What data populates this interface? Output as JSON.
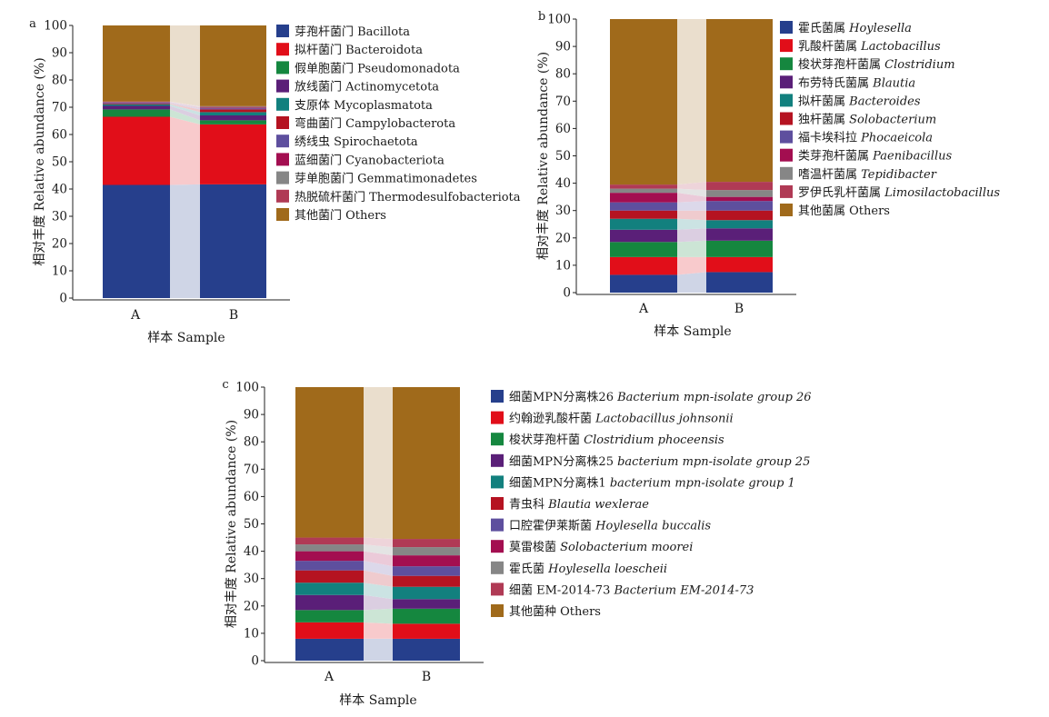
{
  "chart_data": [
    {
      "panel_label": "a",
      "type": "bar",
      "stacked": true,
      "categories": [
        "A",
        "B"
      ],
      "xlabel": "样本 Sample",
      "ylabel": "相对丰度 Relative abundance (%)",
      "ylim": [
        0,
        100
      ],
      "yticks": [
        0,
        10,
        20,
        30,
        40,
        50,
        60,
        70,
        80,
        90,
        100
      ],
      "legend_position": "right",
      "series": [
        {
          "name": "芽孢杆菌门 Bacillota",
          "values": [
            41.5,
            41.7
          ],
          "color": "#263F8C"
        },
        {
          "name": "拟杆菌门 Bacteroidota",
          "values": [
            25.0,
            22.0
          ],
          "color": "#E10E19"
        },
        {
          "name": "假单胞菌门 Pseudomonadota",
          "values": [
            2.7,
            1.5
          ],
          "color": "#15873F"
        },
        {
          "name": "放线菌门 Actinomycetota",
          "values": [
            1.3,
            1.8
          ],
          "color": "#5A1F78"
        },
        {
          "name": "支原体 Mycoplasmatota",
          "values": [
            0.6,
            1.2
          ],
          "color": "#12807E"
        },
        {
          "name": "弯曲菌门 Campylobacterota",
          "values": [
            0.3,
            1.0
          ],
          "color": "#B51321"
        },
        {
          "name": "绣线虫 Spirochaetota",
          "values": [
            0.3,
            0.4
          ],
          "color": "#5E4F9E"
        },
        {
          "name": "蓝细菌门 Cyanobacteriota",
          "values": [
            0.2,
            0.3
          ],
          "color": "#A30E50"
        },
        {
          "name": "芽单胞菌门 Gemmatimonadetes",
          "values": [
            0.1,
            0.3
          ],
          "color": "#868686"
        },
        {
          "name": "热脱硫杆菌门 Thermodesulfobacteriota",
          "values": [
            0.1,
            0.2
          ],
          "color": "#B03A55"
        },
        {
          "name": "其他菌门 Others",
          "values": [
            27.9,
            29.6
          ],
          "color": "#A06A1B"
        }
      ]
    },
    {
      "panel_label": "b",
      "type": "bar",
      "stacked": true,
      "categories": [
        "A",
        "B"
      ],
      "xlabel": "样本 Sample",
      "ylabel": "相对丰度 Relative abundance (%)",
      "ylim": [
        0,
        100
      ],
      "yticks": [
        0,
        10,
        20,
        30,
        40,
        50,
        60,
        70,
        80,
        90,
        100
      ],
      "legend_position": "right",
      "series": [
        {
          "name_cn": "霍氏菌属",
          "name_latin": "Hoylesella",
          "values": [
            6.5,
            7.5
          ],
          "color": "#263F8C"
        },
        {
          "name_cn": "乳酸杆菌属",
          "name_latin": "Lactobacillus",
          "values": [
            6.5,
            5.5
          ],
          "color": "#E10E19"
        },
        {
          "name_cn": "梭状芽孢杆菌属",
          "name_latin": "Clostridium",
          "values": [
            5.5,
            6.0
          ],
          "color": "#15873F"
        },
        {
          "name_cn": "布劳特氏菌属",
          "name_latin": "Blautia",
          "values": [
            4.5,
            4.5
          ],
          "color": "#5A1F78"
        },
        {
          "name_cn": "拟杆菌属",
          "name_latin": "Bacteroides",
          "values": [
            4.0,
            3.0
          ],
          "color": "#12807E"
        },
        {
          "name_cn": "独杆菌属",
          "name_latin": "Solobacterium",
          "values": [
            3.0,
            3.5
          ],
          "color": "#B51321"
        },
        {
          "name_cn": "福卡埃科拉",
          "name_latin": "Phocaeicola",
          "values": [
            3.0,
            3.5
          ],
          "color": "#5E4F9E"
        },
        {
          "name_cn": "类芽孢杆菌属",
          "name_latin": "Paenibacillus",
          "values": [
            3.5,
            1.5
          ],
          "color": "#A30E50"
        },
        {
          "name_cn": "嗜温杆菌属",
          "name_latin": "Tepidibacter",
          "values": [
            1.5,
            2.5
          ],
          "color": "#868686"
        },
        {
          "name_cn": "罗伊氏乳杆菌属",
          "name_latin": "Limosilactobacillus",
          "values": [
            1.5,
            3.0
          ],
          "color": "#B03A55"
        },
        {
          "name_cn": "其他菌属",
          "name_latin": "",
          "name_suffix": "Others",
          "values": [
            60.5,
            59.5
          ],
          "color": "#A06A1B"
        }
      ]
    },
    {
      "panel_label": "c",
      "type": "bar",
      "stacked": true,
      "categories": [
        "A",
        "B"
      ],
      "xlabel": "样本 Sample",
      "ylabel": "相对丰度 Relative abundance (%)",
      "ylim": [
        0,
        100
      ],
      "yticks": [
        0,
        10,
        20,
        30,
        40,
        50,
        60,
        70,
        80,
        90,
        100
      ],
      "legend_position": "right",
      "series": [
        {
          "name_cn": "细菌MPN分离株26",
          "name_latin": "Bacterium mpn-isolate group 26",
          "values": [
            8.0,
            8.0
          ],
          "color": "#263F8C"
        },
        {
          "name_cn": "约翰逊乳酸杆菌",
          "name_latin": "Lactobacillus johnsonii",
          "values": [
            6.0,
            5.5
          ],
          "color": "#E10E19"
        },
        {
          "name_cn": "梭状芽孢杆菌",
          "name_latin": "Clostridium phoceensis",
          "values": [
            4.5,
            5.5
          ],
          "color": "#15873F"
        },
        {
          "name_cn": "细菌MPN分离株25",
          "name_latin": "bacterium mpn-isolate group 25",
          "values": [
            5.5,
            3.5
          ],
          "color": "#5A1F78"
        },
        {
          "name_cn": "细菌MPN分离株1",
          "name_latin": "bacterium mpn-isolate group 1",
          "values": [
            4.5,
            4.5
          ],
          "color": "#12807E"
        },
        {
          "name_cn": "青虫科",
          "name_latin": "Blautia wexlerae",
          "values": [
            4.5,
            4.0
          ],
          "color": "#B51321"
        },
        {
          "name_cn": "口腔霍伊莱斯菌",
          "name_latin": "Hoylesella buccalis",
          "values": [
            3.5,
            3.5
          ],
          "color": "#5E4F9E"
        },
        {
          "name_cn": "莫雷梭菌",
          "name_latin": "Solobacterium moorei",
          "values": [
            3.5,
            4.0
          ],
          "color": "#A30E50"
        },
        {
          "name_cn": "霍氏菌",
          "name_latin": "Hoylesella loescheii",
          "values": [
            2.5,
            3.0
          ],
          "color": "#868686"
        },
        {
          "name_cn": "细菌 EM-2014-73",
          "name_latin": "Bacterium EM-2014-73",
          "values": [
            2.5,
            3.0
          ],
          "color": "#B03A55"
        },
        {
          "name_cn": "其他菌种",
          "name_latin": "",
          "name_suffix": "Others",
          "values": [
            55.0,
            55.5
          ],
          "color": "#A06A1B"
        }
      ]
    }
  ]
}
